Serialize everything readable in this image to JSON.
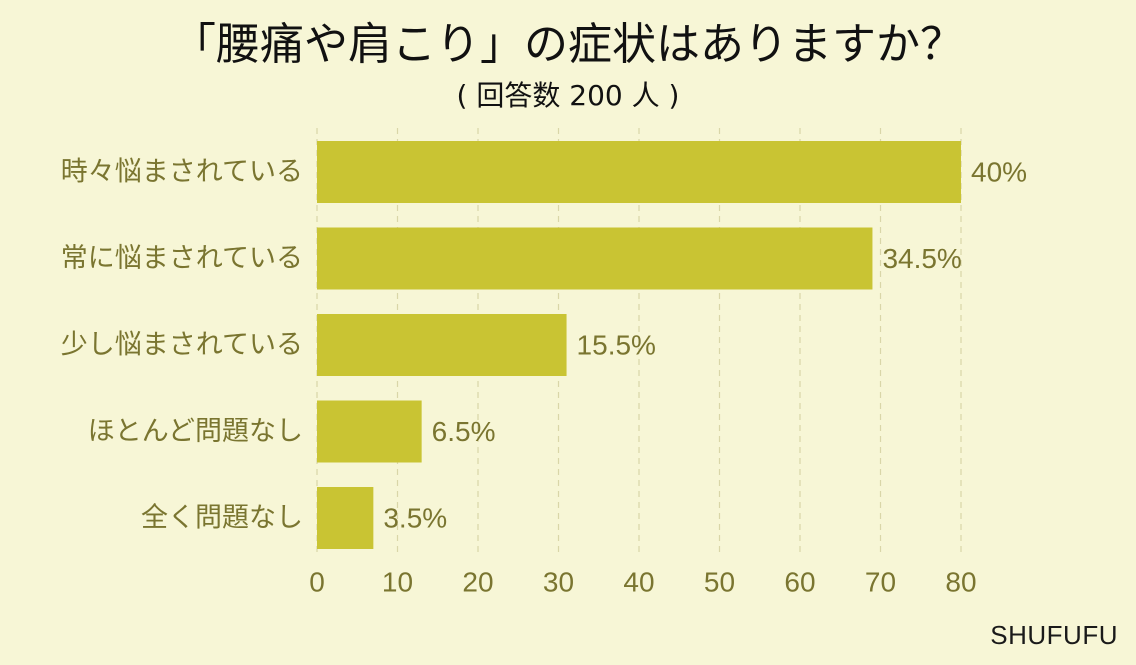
{
  "chart_data": {
    "type": "bar",
    "orientation": "horizontal",
    "title": "「腰痛や肩こり」の症状はありますか？",
    "subtitle": "( 回答数 200 人 )",
    "categories": [
      "時々悩まされている",
      "常に悩まされている",
      "少し悩まされている",
      "ほとんど問題なし",
      "全く問題なし"
    ],
    "values": [
      80,
      69,
      31,
      13,
      7
    ],
    "data_labels": [
      "40%",
      "34.5%",
      "15.5%",
      "6.5%",
      "3.5%"
    ],
    "xlim": [
      0,
      80
    ],
    "xticks": [
      0,
      10,
      20,
      30,
      40,
      50,
      60,
      70,
      80
    ],
    "grid": "vertical-dashed",
    "bar_color": "#c9c433",
    "label_color": "#7a7530"
  },
  "brand": "SHUFUFU"
}
